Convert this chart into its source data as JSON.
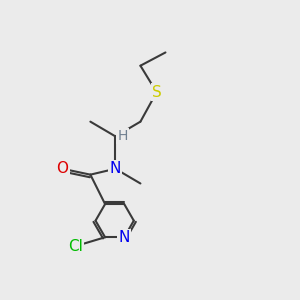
{
  "bg_color": "#ebebeb",
  "bond_color": "#3a3a3a",
  "bond_width": 1.5,
  "atom_colors": {
    "N_pyridine": "#0000ee",
    "N_amide": "#0000ee",
    "O": "#dd0000",
    "Cl": "#00bb00",
    "S": "#cccc00",
    "H": "#708090",
    "C": "#3a3a3a"
  },
  "font_size": 11,
  "font_size_h": 10
}
